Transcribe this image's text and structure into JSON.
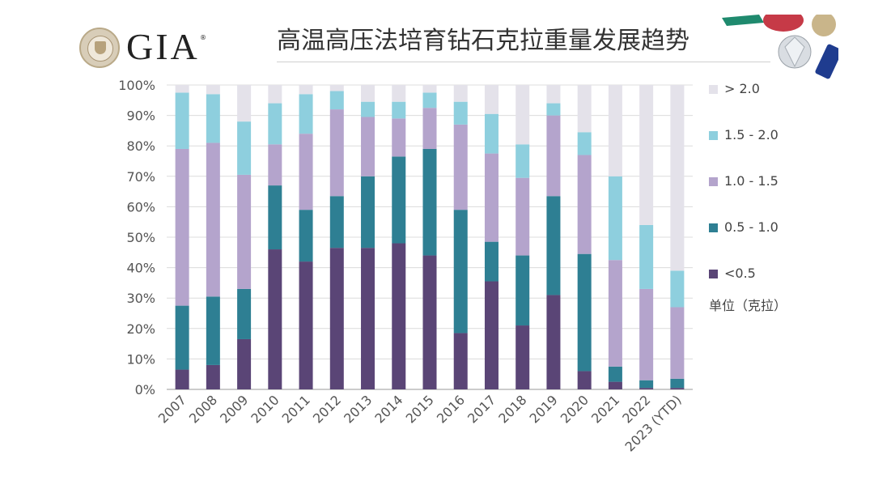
{
  "header": {
    "logo_text": "GIA",
    "logo_registered": "®",
    "title": "高温高压法培育钻石克拉重量发展趋势"
  },
  "legend": {
    "items": [
      {
        "label": "> 2.0",
        "color": "#e4e2ea"
      },
      {
        "label": "1.5 - 2.0",
        "color": "#8ecfde"
      },
      {
        "label": "1.0 - 1.5",
        "color": "#b4a4cc"
      },
      {
        "label": "0.5 - 1.0",
        "color": "#2e7f93"
      },
      {
        "label": "<0.5",
        "color": "#5a4576"
      }
    ],
    "unit": "单位（克拉）"
  },
  "chart_data": {
    "type": "bar",
    "stacked": true,
    "categories": [
      "2007",
      "2008",
      "2009",
      "2010",
      "2011",
      "2012",
      "2013",
      "2014",
      "2015",
      "2016",
      "2017",
      "2018",
      "2019",
      "2020",
      "2021",
      "2022",
      "2023 (YTD)"
    ],
    "series": [
      {
        "name": "<0.5",
        "color": "#5a4576",
        "values": [
          6.5,
          8,
          16.5,
          46,
          42,
          46.5,
          46.5,
          48,
          44,
          18.5,
          35.5,
          21,
          31,
          6,
          2.5,
          0.5,
          0.5
        ]
      },
      {
        "name": "0.5 - 1.0",
        "color": "#2e7f93",
        "values": [
          21,
          22.5,
          16.5,
          21,
          17,
          17,
          23.5,
          28.5,
          35,
          40.5,
          13,
          23,
          32.5,
          38.5,
          5,
          2.5,
          3
        ]
      },
      {
        "name": "1.0 - 1.5",
        "color": "#b4a4cc",
        "values": [
          51.5,
          50.5,
          37.5,
          13.5,
          25,
          28.5,
          19.5,
          12.5,
          13.5,
          28,
          29,
          25.5,
          26.5,
          32.5,
          35,
          30,
          23.5
        ]
      },
      {
        "name": "1.5 - 2.0",
        "color": "#8ecfde",
        "values": [
          18.5,
          16,
          17.5,
          13.5,
          13,
          6,
          5,
          5.5,
          5,
          7.5,
          13,
          11,
          4,
          7.5,
          27.5,
          21,
          12
        ]
      },
      {
        "name": "> 2.0",
        "color": "#e4e2ea",
        "values": [
          2.5,
          3,
          12,
          6,
          3,
          2,
          5.5,
          5.5,
          2.5,
          5.5,
          9.5,
          19.5,
          6,
          15.5,
          30,
          46,
          61
        ]
      }
    ],
    "yticks": [
      "0%",
      "10%",
      "20%",
      "30%",
      "40%",
      "50%",
      "60%",
      "70%",
      "80%",
      "90%",
      "100%"
    ],
    "ylim": [
      0,
      100
    ],
    "grid": true,
    "legend_position": "right"
  }
}
